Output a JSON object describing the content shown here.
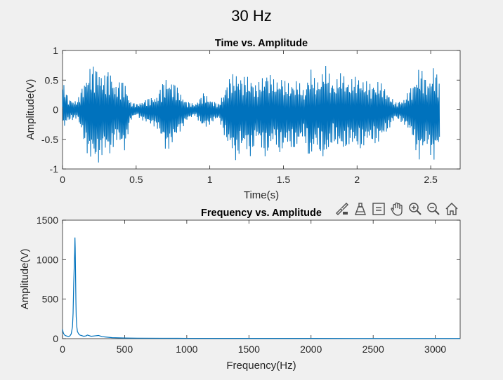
{
  "figure": {
    "title": "30 Hz"
  },
  "colors": {
    "line": "#0072BD",
    "axes_bg": "#ffffff",
    "fig_bg": "#f0f0f0",
    "axis": "#262626",
    "icon": "#4d4d4d"
  },
  "toolbar": {
    "icons": [
      "brush-data-icon",
      "data-tips-icon",
      "legend-toggle-icon",
      "pan-icon",
      "zoom-in-icon",
      "zoom-out-icon",
      "home-restore-view-icon"
    ]
  },
  "chart_data": [
    {
      "type": "line",
      "title": "Time vs. Amplitude",
      "xlabel": "Time(s)",
      "ylabel": "Amplitude(V)",
      "xlim": [
        0,
        2.7
      ],
      "ylim": [
        -1,
        1
      ],
      "xticks": [
        "0",
        "0.5",
        "1",
        "1.5",
        "2",
        "2.5"
      ],
      "yticks": [
        "-1",
        "-0.5",
        "0",
        "0.5",
        "1"
      ],
      "grid": false,
      "series": [
        {
          "envelope": {
            "x": [
              0,
              0.04,
              0.1,
              0.18,
              0.24,
              0.28,
              0.32,
              0.36,
              0.42,
              0.46,
              0.5,
              0.58,
              0.64,
              0.7,
              0.76,
              0.84,
              0.9,
              0.96,
              1.0,
              1.06,
              1.12,
              1.18,
              1.22,
              1.28,
              1.32,
              1.38,
              1.44,
              1.48,
              1.52,
              1.58,
              1.64,
              1.68,
              1.72,
              1.78,
              1.84,
              1.9,
              1.95,
              2.02,
              2.08,
              2.14,
              2.2,
              2.26,
              2.32,
              2.38,
              2.42,
              2.48,
              2.52,
              2.56
            ],
            "upper": [
              0.5,
              0.2,
              0.15,
              0.75,
              0.78,
              0.6,
              0.72,
              0.45,
              0.55,
              0.15,
              0.1,
              0.2,
              0.25,
              0.58,
              0.48,
              0.15,
              0.1,
              0.3,
              0.2,
              0.1,
              0.5,
              0.7,
              0.55,
              0.62,
              0.4,
              0.72,
              0.5,
              0.62,
              0.45,
              0.55,
              0.35,
              0.75,
              0.48,
              0.78,
              0.5,
              0.65,
              0.52,
              0.6,
              0.45,
              0.52,
              0.35,
              0.12,
              0.2,
              0.45,
              0.78,
              0.5,
              0.78,
              0.5
            ],
            "lower": [
              -0.4,
              -0.2,
              -0.15,
              -0.85,
              -0.95,
              -0.7,
              -0.85,
              -0.5,
              -0.75,
              -0.2,
              -0.1,
              -0.25,
              -0.3,
              -0.72,
              -0.55,
              -0.2,
              -0.1,
              -0.35,
              -0.25,
              -0.15,
              -0.6,
              -0.9,
              -0.65,
              -0.82,
              -0.5,
              -0.85,
              -0.55,
              -0.8,
              -0.6,
              -0.72,
              -0.45,
              -0.95,
              -0.6,
              -0.92,
              -0.55,
              -0.75,
              -0.6,
              -0.7,
              -0.55,
              -0.6,
              -0.4,
              -0.15,
              -0.25,
              -0.5,
              -0.9,
              -0.6,
              -0.95,
              -0.6
            ]
          }
        }
      ]
    },
    {
      "type": "line",
      "title": "Frequency vs. Amplitude",
      "xlabel": "Frequency(Hz)",
      "ylabel": "Amplitude(V)",
      "xlim": [
        0,
        3200
      ],
      "ylim": [
        0,
        1500
      ],
      "xticks": [
        "0",
        "500",
        "1000",
        "1500",
        "2000",
        "2500",
        "3000"
      ],
      "yticks": [
        "0",
        "500",
        "1000",
        "1500"
      ],
      "grid": false,
      "series": [
        {
          "x": [
            0,
            5,
            10,
            20,
            30,
            40,
            50,
            60,
            70,
            80,
            85,
            90,
            95,
            98,
            100,
            102,
            105,
            108,
            110,
            115,
            120,
            130,
            140,
            150,
            170,
            190,
            200,
            210,
            230,
            260,
            290,
            300,
            320,
            350,
            400,
            500,
            600,
            800,
            1000,
            1500,
            2000,
            2500,
            3000,
            3200
          ],
          "y": [
            120,
            80,
            60,
            40,
            35,
            30,
            28,
            35,
            60,
            150,
            320,
            700,
            950,
            1100,
            1280,
            1150,
            800,
            450,
            280,
            150,
            90,
            60,
            45,
            40,
            30,
            35,
            45,
            40,
            30,
            35,
            40,
            35,
            25,
            20,
            12,
            8,
            6,
            5,
            4,
            3,
            3,
            2,
            2,
            2
          ]
        }
      ]
    }
  ]
}
